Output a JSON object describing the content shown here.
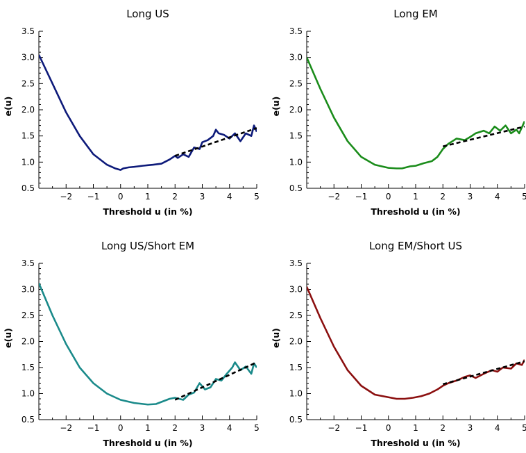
{
  "chart_data": [
    {
      "type": "line",
      "title": "Long US",
      "xlabel": "Threshold u (in %)",
      "ylabel": "e(u)",
      "xlim": [
        -3,
        5
      ],
      "ylim": [
        0.5,
        3.5
      ],
      "xticks": [
        "−2",
        "−1",
        "0",
        "1",
        "2",
        "3",
        "4",
        "5"
      ],
      "yticks": [
        "0.5",
        "1.0",
        "1.5",
        "2.0",
        "2.5",
        "3.0",
        "3.5"
      ],
      "series": [
        {
          "color": "#0d1a7a",
          "style": "solid",
          "x": [
            -3.0,
            -2.5,
            -2.0,
            -1.5,
            -1.0,
            -0.5,
            -0.2,
            0.0,
            0.1,
            0.3,
            0.5,
            0.8,
            1.0,
            1.2,
            1.5,
            1.8,
            2.0,
            2.1,
            2.3,
            2.5,
            2.7,
            2.9,
            3.0,
            3.2,
            3.4,
            3.5,
            3.6,
            3.8,
            4.0,
            4.2,
            4.4,
            4.6,
            4.8,
            4.9,
            5.0
          ],
          "y": [
            3.05,
            2.5,
            1.95,
            1.5,
            1.15,
            0.95,
            0.88,
            0.85,
            0.88,
            0.9,
            0.91,
            0.93,
            0.94,
            0.95,
            0.97,
            1.05,
            1.12,
            1.08,
            1.15,
            1.1,
            1.28,
            1.25,
            1.38,
            1.42,
            1.5,
            1.62,
            1.55,
            1.52,
            1.45,
            1.55,
            1.4,
            1.55,
            1.5,
            1.7,
            1.58
          ]
        },
        {
          "color": "#000000",
          "style": "dashed",
          "x": [
            2.0,
            5.0
          ],
          "y": [
            1.12,
            1.65
          ]
        }
      ]
    },
    {
      "type": "line",
      "title": "Long EM",
      "xlabel": "Threshold u (in %)",
      "ylabel": "e(u)",
      "xlim": [
        -3,
        5
      ],
      "ylim": [
        0.5,
        3.5
      ],
      "xticks": [
        "−2",
        "−1",
        "0",
        "1",
        "2",
        "3",
        "4",
        "5"
      ],
      "yticks": [
        "0.5",
        "1.0",
        "1.5",
        "2.0",
        "2.5",
        "3.0",
        "3.5"
      ],
      "series": [
        {
          "color": "#1a8c1a",
          "style": "solid",
          "x": [
            -3.0,
            -2.5,
            -2.0,
            -1.5,
            -1.0,
            -0.5,
            0.0,
            0.3,
            0.5,
            0.8,
            1.0,
            1.3,
            1.6,
            1.8,
            2.0,
            2.2,
            2.5,
            2.8,
            3.0,
            3.2,
            3.5,
            3.7,
            3.9,
            4.1,
            4.3,
            4.5,
            4.7,
            4.8,
            5.0
          ],
          "y": [
            3.0,
            2.4,
            1.85,
            1.4,
            1.1,
            0.95,
            0.89,
            0.88,
            0.88,
            0.92,
            0.93,
            0.98,
            1.02,
            1.1,
            1.25,
            1.35,
            1.45,
            1.42,
            1.48,
            1.55,
            1.6,
            1.55,
            1.68,
            1.6,
            1.7,
            1.55,
            1.62,
            1.55,
            1.78
          ]
        },
        {
          "color": "#000000",
          "style": "dashed",
          "x": [
            2.0,
            5.0
          ],
          "y": [
            1.3,
            1.68
          ]
        }
      ]
    },
    {
      "type": "line",
      "title": "Long US/Short EM",
      "xlabel": "Threshold u (in %)",
      "ylabel": "e(u)",
      "xlim": [
        -3,
        5
      ],
      "ylim": [
        0.5,
        3.5
      ],
      "xticks": [
        "−2",
        "−1",
        "0",
        "1",
        "2",
        "3",
        "4",
        "5"
      ],
      "yticks": [
        "0.5",
        "1.0",
        "1.5",
        "2.0",
        "2.5",
        "3.0",
        "3.5"
      ],
      "series": [
        {
          "color": "#1a8a8a",
          "style": "solid",
          "x": [
            -3.0,
            -2.5,
            -2.0,
            -1.5,
            -1.0,
            -0.5,
            0.0,
            0.5,
            1.0,
            1.3,
            1.6,
            1.8,
            2.0,
            2.3,
            2.5,
            2.7,
            2.9,
            3.1,
            3.3,
            3.5,
            3.7,
            3.9,
            4.1,
            4.2,
            4.4,
            4.6,
            4.8,
            4.9,
            5.0
          ],
          "y": [
            3.12,
            2.5,
            1.95,
            1.5,
            1.2,
            1.0,
            0.88,
            0.82,
            0.79,
            0.8,
            0.86,
            0.9,
            0.92,
            0.88,
            0.98,
            1.02,
            1.2,
            1.08,
            1.12,
            1.28,
            1.25,
            1.38,
            1.5,
            1.6,
            1.45,
            1.52,
            1.38,
            1.58,
            1.5
          ]
        },
        {
          "color": "#000000",
          "style": "dashed",
          "x": [
            2.0,
            5.0
          ],
          "y": [
            0.88,
            1.6
          ]
        }
      ]
    },
    {
      "type": "line",
      "title": "Long EM/Short US",
      "xlabel": "Threshold u (in %)",
      "ylabel": "e(u)",
      "xlim": [
        -3,
        5
      ],
      "ylim": [
        0.5,
        3.5
      ],
      "xticks": [
        "−2",
        "−1",
        "0",
        "1",
        "2",
        "3",
        "4",
        "5"
      ],
      "yticks": [
        "0.5",
        "1.0",
        "1.5",
        "2.0",
        "2.5",
        "3.0",
        "3.5"
      ],
      "series": [
        {
          "color": "#8b0f0f",
          "style": "solid",
          "x": [
            -3.0,
            -2.5,
            -2.0,
            -1.5,
            -1.0,
            -0.5,
            0.0,
            0.3,
            0.6,
            0.9,
            1.2,
            1.5,
            1.8,
            2.0,
            2.2,
            2.5,
            2.8,
            3.0,
            3.2,
            3.5,
            3.8,
            4.0,
            4.2,
            4.5,
            4.7,
            4.9,
            5.0
          ],
          "y": [
            3.05,
            2.45,
            1.9,
            1.45,
            1.15,
            0.98,
            0.93,
            0.9,
            0.9,
            0.92,
            0.95,
            1.0,
            1.08,
            1.15,
            1.2,
            1.25,
            1.32,
            1.35,
            1.3,
            1.38,
            1.45,
            1.42,
            1.5,
            1.48,
            1.58,
            1.55,
            1.65
          ]
        },
        {
          "color": "#000000",
          "style": "dashed",
          "x": [
            2.0,
            5.0
          ],
          "y": [
            1.18,
            1.62
          ]
        }
      ]
    }
  ]
}
